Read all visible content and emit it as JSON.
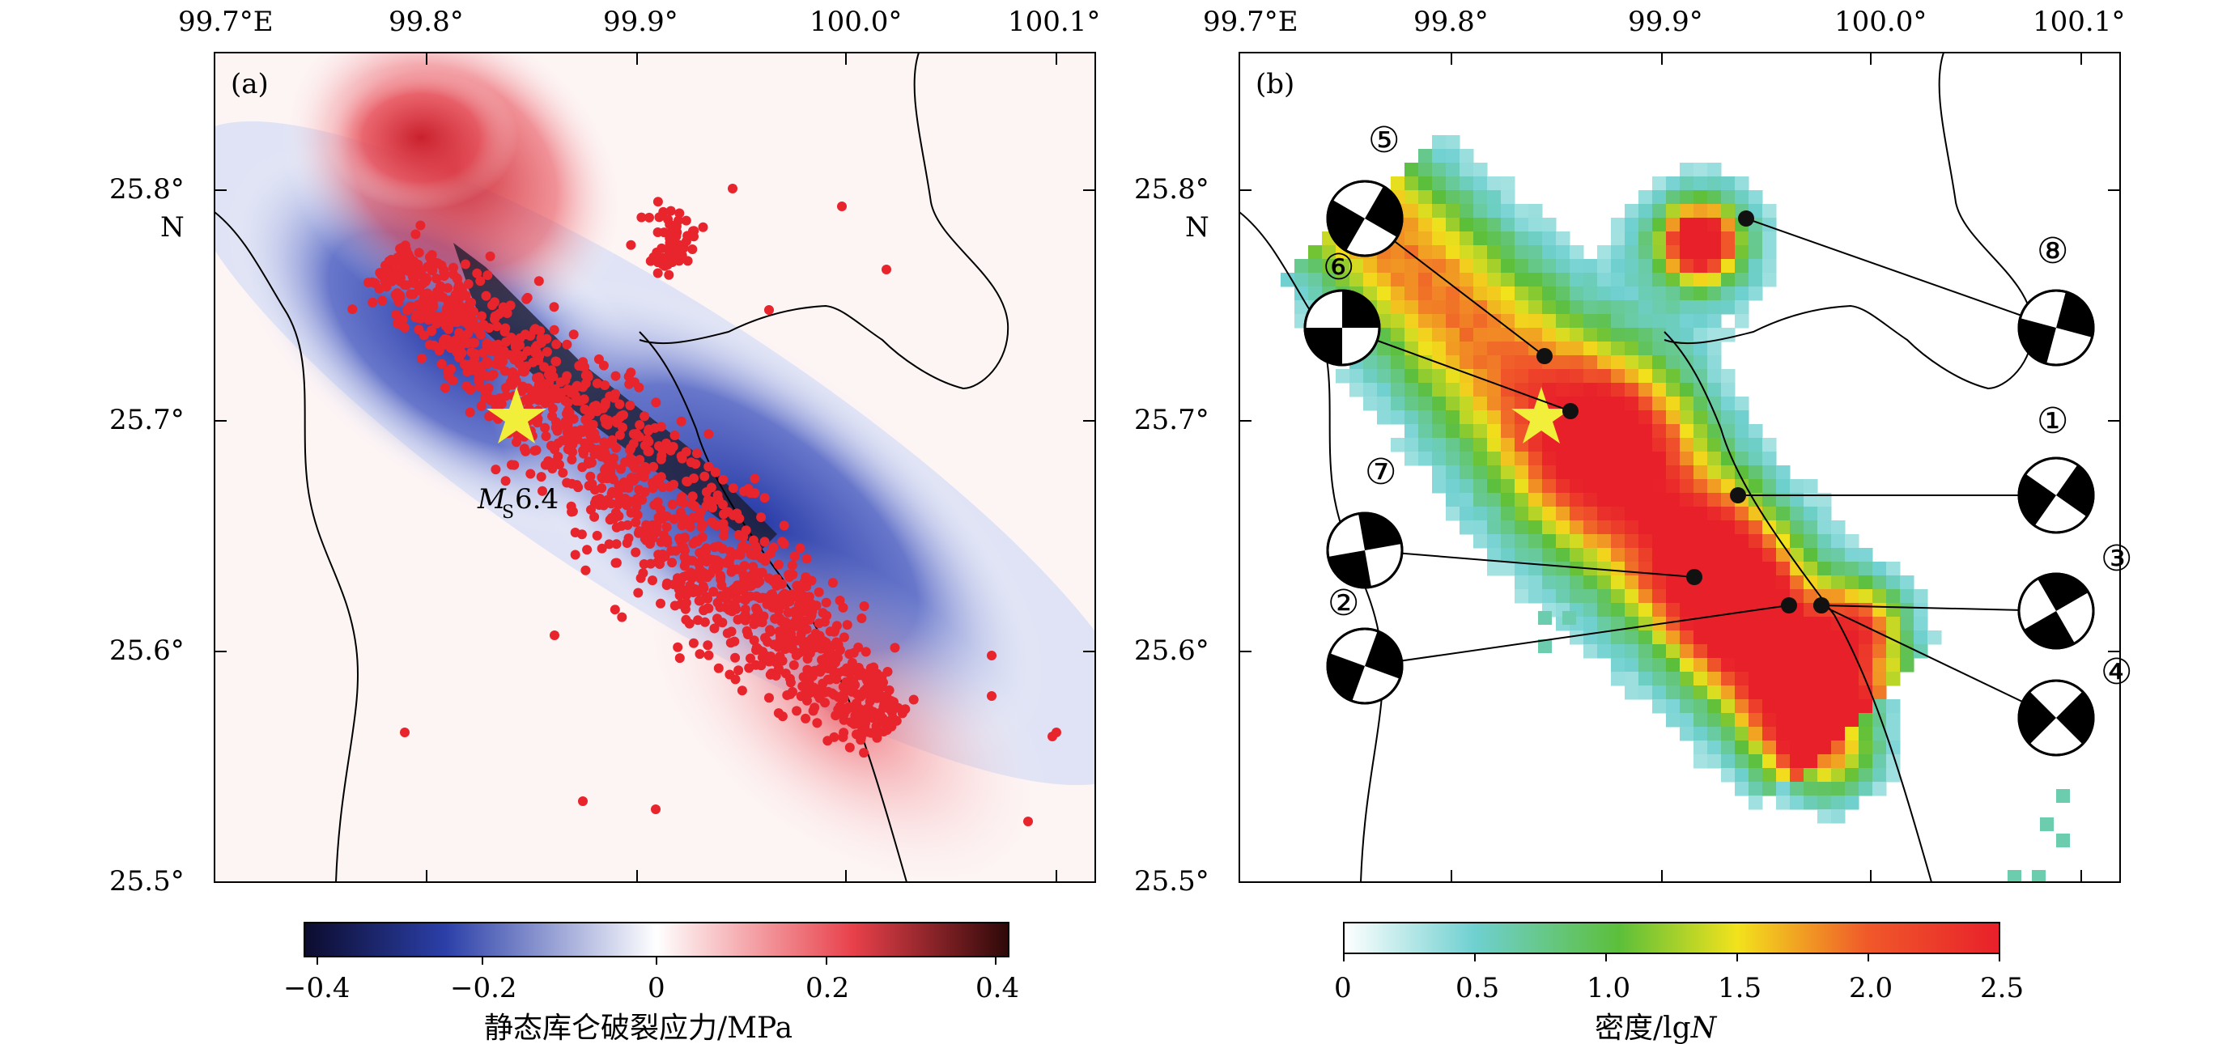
{
  "panel_a": {
    "label": "(a)",
    "top_ticks": [
      "99.7°E",
      "99.8°",
      "99.9°",
      "100.0°",
      "100.1°"
    ],
    "left_ticks": [
      "25.8°",
      "25.7°",
      "25.6°",
      "25.5°"
    ],
    "n_label": "N",
    "mainshock_label_m": "M",
    "mainshock_label_sub": "S",
    "mainshock_label_val": "6.4",
    "colorbar": {
      "title": "静态库仑破裂应力/MPa",
      "ticks": [
        "−0.4",
        "−0.2",
        "0",
        "0.2",
        "0.4"
      ],
      "range": [
        -0.45,
        0.45
      ],
      "colors": [
        "#0c0c2e",
        "#2b3fa8",
        "#ffffff",
        "#e8404a",
        "#2e0808"
      ]
    }
  },
  "panel_b": {
    "label": "(b)",
    "top_ticks": [
      "99.7°E",
      "99.8°",
      "99.9°",
      "100.0°",
      "100.1°"
    ],
    "left_ticks": [
      "25.8°",
      "25.7°",
      "25.6°",
      "25.5°"
    ],
    "n_label": "N",
    "colorbar": {
      "title_main": "密度/lg",
      "title_var": "N",
      "ticks": [
        "0",
        "0.5",
        "1.0",
        "1.5",
        "2.0",
        "2.5"
      ],
      "range": [
        0,
        2.5
      ],
      "colors": [
        "#ffffff",
        "#6fd0d0",
        "#5cbf3a",
        "#f2e21c",
        "#f0582a",
        "#e8202a"
      ]
    },
    "focal_mechanisms": [
      {
        "id": "1",
        "label": "①"
      },
      {
        "id": "2",
        "label": "②"
      },
      {
        "id": "3",
        "label": "③"
      },
      {
        "id": "4",
        "label": "④"
      },
      {
        "id": "5",
        "label": "⑤"
      },
      {
        "id": "6",
        "label": "⑥"
      },
      {
        "id": "7",
        "label": "⑦"
      },
      {
        "id": "8",
        "label": "⑧"
      }
    ]
  },
  "map_extent": {
    "lon": [
      99.7,
      100.1
    ],
    "lat": [
      25.5,
      25.85
    ]
  },
  "colors": {
    "aftershock": "#e8242c",
    "star": "#f2ef3a",
    "fault": "#000000"
  }
}
